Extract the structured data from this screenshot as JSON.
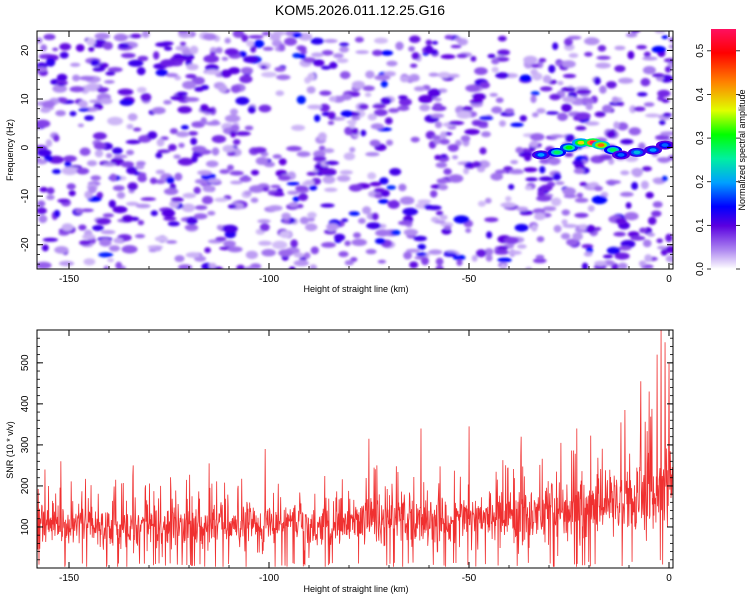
{
  "chart_data": [
    {
      "type": "heatmap",
      "title": "KOM5.2026.011.12.25.G16",
      "xlabel": "Height of straight line (km)",
      "ylabel": "Frequency (Hz)",
      "xlim": [
        -158,
        1
      ],
      "ylim": [
        -25,
        24
      ],
      "xticks": [
        -150,
        -100,
        -50,
        0
      ],
      "yticks": [
        -20,
        -10,
        0,
        10,
        20
      ],
      "colorbar": {
        "label": "Normalized spectral amplitude",
        "range": [
          0.0,
          0.55
        ],
        "ticks": [
          0.0,
          0.1,
          0.2,
          0.3,
          0.4,
          0.5
        ],
        "colormap": [
          "#ffffff",
          "#ad86f0",
          "#5a00e0",
          "#0000ff",
          "#00a0ff",
          "#00f0a0",
          "#00ff00",
          "#e0ff00",
          "#ff8000",
          "#ff0000",
          "#ff1060"
        ]
      },
      "ridge": [
        {
          "x": -32,
          "f": -1.5,
          "amp": 0.22
        },
        {
          "x": -28,
          "f": -1.0,
          "amp": 0.3
        },
        {
          "x": -25,
          "f": 0.0,
          "amp": 0.33
        },
        {
          "x": -22,
          "f": 1.0,
          "amp": 0.4
        },
        {
          "x": -19,
          "f": 1.0,
          "amp": 0.55
        },
        {
          "x": -17,
          "f": 0.5,
          "amp": 0.45
        },
        {
          "x": -14,
          "f": -0.5,
          "amp": 0.3
        },
        {
          "x": -12,
          "f": -1.5,
          "amp": 0.2
        },
        {
          "x": -8,
          "f": -1.0,
          "amp": 0.24
        },
        {
          "x": -4,
          "f": -0.5,
          "amp": 0.22
        },
        {
          "x": -1,
          "f": 0.5,
          "amp": 0.2
        }
      ]
    },
    {
      "type": "line",
      "title": "",
      "xlabel": "Height of straight line (km)",
      "ylabel": "SNR (10 * v/v)",
      "xlim": [
        -158,
        1
      ],
      "ylim": [
        0,
        580
      ],
      "xticks": [
        -150,
        -100,
        -50,
        0
      ],
      "yticks": [
        100,
        200,
        300,
        400,
        500
      ],
      "series": [
        {
          "name": "SNR",
          "color": "#f03030",
          "baseline": [
            {
              "x": -158,
              "v": 100
            },
            {
              "x": -100,
              "v": 105
            },
            {
              "x": -60,
              "v": 115
            },
            {
              "x": -40,
              "v": 125
            },
            {
              "x": -20,
              "v": 150
            },
            {
              "x": -5,
              "v": 180
            },
            {
              "x": 1,
              "v": 200
            }
          ],
          "peaks": [
            {
              "x": -156,
              "v": 240
            },
            {
              "x": -152,
              "v": 260
            },
            {
              "x": -134,
              "v": 250
            },
            {
              "x": -115,
              "v": 255
            },
            {
              "x": -101,
              "v": 290
            },
            {
              "x": -75,
              "v": 315
            },
            {
              "x": -73,
              "v": 250
            },
            {
              "x": -62,
              "v": 340
            },
            {
              "x": -50,
              "v": 345
            },
            {
              "x": -37,
              "v": 320
            },
            {
              "x": -27,
              "v": 305
            },
            {
              "x": -23,
              "v": 340
            },
            {
              "x": -12,
              "v": 355
            },
            {
              "x": -11,
              "v": 385
            },
            {
              "x": -7,
              "v": 455
            },
            {
              "x": -5,
              "v": 430
            },
            {
              "x": -3,
              "v": 520
            },
            {
              "x": -2,
              "v": 585
            },
            {
              "x": -1,
              "v": 550
            },
            {
              "x": 0,
              "v": 500
            }
          ]
        }
      ]
    }
  ]
}
